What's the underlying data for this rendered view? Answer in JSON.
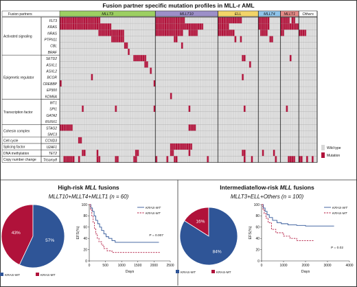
{
  "page_title": "Fusion partner specific mutation profiles in MLL-r AML",
  "heatmap": {
    "header_label": "Fusion partners",
    "partners": [
      {
        "name": "MLLT3",
        "color": "#9ccf62",
        "n": 52
      },
      {
        "name": "MLLT10",
        "color": "#9c8fc8",
        "n": 34
      },
      {
        "name": "ELL",
        "color": "#f2d468",
        "n": 22
      },
      {
        "name": "MLLT4",
        "color": "#8fc4ea",
        "n": 12
      },
      {
        "name": "MLLT1",
        "color": "#e58a86",
        "n": 10
      },
      {
        "name": "Others",
        "color": "#ffffff",
        "n": 10
      }
    ],
    "groups": [
      {
        "name": "Activated signaling",
        "genes": [
          "FLT3",
          "KRAS",
          "NRAS",
          "PTPN11",
          "CBL",
          "BRAF"
        ]
      },
      {
        "name": "Epigenetic regulator",
        "genes": [
          "SETD2",
          "ASXL1",
          "ASXL2",
          "BCOR",
          "CREBBP",
          "EP300",
          "KDM6A"
        ]
      },
      {
        "name": "Transcription factor",
        "genes": [
          "WT1",
          "SPI1",
          "GATA2",
          "RUNX1"
        ]
      },
      {
        "name": "Cohesin complex",
        "genes": [
          "STAG2",
          "SMC3"
        ]
      },
      {
        "name": "Cell cycle",
        "genes": [
          "CCND3"
        ]
      },
      {
        "name": "Splicing factor",
        "genes": [
          "U2AF1"
        ]
      },
      {
        "name": "DNA methylation",
        "genes": [
          "TET2"
        ]
      },
      {
        "name": "Copy number change",
        "genes": [
          "Trisomy8"
        ]
      }
    ],
    "legend": [
      {
        "label": "Wild type",
        "color": "#d8d8d8"
      },
      {
        "label": "Mutation",
        "color": "#b0123a"
      }
    ],
    "colors": {
      "wildtype": "#d8d8d8",
      "mutation": "#b0123a",
      "grid": "#ffffff"
    }
  },
  "panels": [
    {
      "title_prefix": "High-risk ",
      "title_italic": "MLL",
      "title_suffix": " fusions",
      "subtitle": "MLLT10+MLLT4+MLLT1 (n = 60)"
    },
    {
      "title_prefix": "Intermediate/low-risk ",
      "title_italic": "MLL",
      "title_suffix": " fusions",
      "subtitle": "MLLT3+ELL+Others (n = 100)"
    }
  ],
  "chart_data": [
    {
      "type": "heatmap",
      "rows": [
        "FLT3",
        "KRAS",
        "NRAS",
        "PTPN11",
        "CBL",
        "BRAF",
        "SETD2",
        "ASXL1",
        "ASXL2",
        "BCOR",
        "CREBBP",
        "EP300",
        "KDM6A",
        "WT1",
        "SPI1",
        "GATA2",
        "RUNX1",
        "STAG2",
        "SMC3",
        "CCND3",
        "U2AF1",
        "TET2",
        "Trisomy8"
      ],
      "column_groups": [
        {
          "name": "MLLT3",
          "n": 52
        },
        {
          "name": "MLLT10",
          "n": 34
        },
        {
          "name": "ELL",
          "n": 22
        },
        {
          "name": "MLLT4",
          "n": 12
        },
        {
          "name": "MLLT1",
          "n": 10
        },
        {
          "name": "Others",
          "n": 10
        }
      ],
      "mutated_columns": {
        "FLT3": [
          0,
          1,
          2,
          3,
          4,
          5,
          6,
          7,
          8,
          9,
          10,
          11,
          12,
          13,
          14,
          15,
          16,
          17,
          18,
          19,
          20,
          21,
          52,
          53,
          54,
          55,
          56,
          57,
          58,
          59,
          60,
          61,
          62,
          63,
          64,
          65,
          66,
          67,
          86,
          87,
          88,
          89,
          90,
          91,
          92,
          93,
          94,
          95,
          96,
          97,
          98,
          108,
          109,
          110,
          111,
          112,
          113,
          120,
          121,
          122,
          123,
          124,
          126,
          127
        ],
        "KRAS": [
          0,
          1,
          2,
          3,
          4,
          5,
          6,
          7,
          8,
          9,
          10,
          11,
          12,
          13,
          14,
          15,
          16,
          17,
          18,
          19,
          20,
          21,
          22,
          23,
          24,
          25,
          26,
          27,
          52,
          53,
          54,
          55,
          56,
          57,
          58,
          59,
          60,
          61,
          62,
          63,
          64,
          65,
          66,
          67,
          68,
          69,
          70,
          71,
          72,
          73,
          74,
          75,
          76,
          77,
          86,
          87,
          88,
          89,
          90,
          91,
          108,
          109,
          110,
          111,
          112,
          113,
          120,
          121,
          122,
          123,
          124,
          125,
          126,
          127,
          128,
          129
        ],
        "NRAS": [
          21,
          22,
          23,
          24,
          25,
          26,
          27,
          28,
          29,
          30,
          31,
          32,
          33,
          34,
          52,
          53,
          54,
          55,
          56,
          57,
          58,
          59,
          60,
          61,
          62,
          63,
          64,
          65,
          66,
          70,
          71,
          72,
          73,
          74,
          86,
          87,
          88,
          89,
          90,
          91,
          92,
          93,
          94,
          109,
          110,
          111,
          112,
          120,
          121,
          130,
          131,
          132,
          133
        ],
        "PTPN11": [
          28,
          29,
          30,
          31,
          32,
          33,
          34,
          62,
          63,
          95,
          98,
          114,
          115
        ],
        "CBL": [
          35,
          36,
          66
        ],
        "BRAF": [
          37
        ],
        "SETD2": [
          40,
          41,
          42,
          43,
          44,
          45,
          46,
          99,
          100,
          125
        ],
        "ASXL1": [
          46,
          47,
          103
        ],
        "ASXL2": [
          49
        ],
        "BCOR": [
          17,
          99
        ],
        "CREBBP": [
          0,
          51
        ],
        "EP300": [],
        "KDM6A": [
          60
        ],
        "WT1": [],
        "SPI1": [
          12,
          30,
          51,
          70,
          100,
          123
        ],
        "GATA2": [],
        "RUNX1": [],
        "STAG2": [
          0,
          1,
          2,
          3,
          4,
          5,
          6,
          70,
          71,
          72,
          73
        ],
        "SMC3": [],
        "CCND3": [
          10,
          11
        ],
        "U2AF1": [
          60,
          61,
          62,
          63,
          64,
          65,
          66,
          67,
          68,
          69,
          70,
          71
        ],
        "TET2": [
          12,
          13,
          20,
          41,
          42,
          60,
          61,
          70,
          99,
          100,
          110,
          116
        ],
        "Trisomy8": [
          2,
          3,
          4,
          5,
          6,
          7,
          10,
          20,
          21,
          30,
          31,
          40,
          41,
          52,
          58,
          62,
          63,
          80,
          100,
          104,
          117,
          124,
          125,
          126,
          127,
          130,
          131,
          134,
          137
        ]
      }
    },
    {
      "type": "pie",
      "labels": [
        "KRAS-WT",
        "KRAS-MT"
      ],
      "values": [
        57,
        43
      ],
      "value_labels": [
        "57%",
        "43%"
      ],
      "colors": [
        "#2f5597",
        "#b0123a"
      ]
    },
    {
      "type": "line",
      "xlabel": "Days",
      "ylabel": "EFS(%)",
      "xlim": [
        0,
        2500
      ],
      "ylim": [
        0,
        100
      ],
      "xticks": [
        0,
        500,
        1000,
        1500,
        2000,
        2500
      ],
      "yticks": [
        0,
        20,
        40,
        60,
        80,
        100
      ],
      "annotation": "P = 0.007",
      "series": [
        {
          "name": "KRAS-WT",
          "color": "#2f5597",
          "dash": false,
          "x": [
            0,
            50,
            100,
            150,
            200,
            260,
            320,
            380,
            450,
            520,
            600,
            700,
            800,
            900,
            1050,
            1300,
            1700,
            2150
          ],
          "y": [
            100,
            94,
            88,
            80,
            72,
            66,
            60,
            54,
            48,
            43,
            40,
            36,
            33,
            33,
            33,
            33,
            33,
            33
          ]
        },
        {
          "name": "KRAS-MT",
          "color": "#b0123a",
          "dash": true,
          "x": [
            0,
            40,
            80,
            120,
            160,
            200,
            250,
            300,
            380,
            450,
            550,
            700,
            900,
            1100,
            1400,
            1800,
            2200
          ],
          "y": [
            100,
            92,
            80,
            68,
            58,
            48,
            40,
            34,
            28,
            22,
            18,
            15,
            15,
            15,
            15,
            15,
            15
          ]
        }
      ]
    },
    {
      "type": "pie",
      "labels": [
        "KRAS-WT",
        "KRAS-MT"
      ],
      "values": [
        84,
        16
      ],
      "value_labels": [
        "84%",
        "16%"
      ],
      "colors": [
        "#2f5597",
        "#b0123a"
      ]
    },
    {
      "type": "line",
      "xlabel": "Days",
      "ylabel": "EFS(%)",
      "xlim": [
        0,
        4000
      ],
      "ylim": [
        0,
        100
      ],
      "xticks": [
        0,
        1000,
        2000,
        3000,
        4000
      ],
      "yticks": [
        0,
        20,
        40,
        60,
        80,
        100
      ],
      "annotation": "P = 0.02",
      "series": [
        {
          "name": "KRAS-WT",
          "color": "#2f5597",
          "dash": false,
          "x": [
            0,
            80,
            160,
            250,
            350,
            500,
            700,
            900,
            1200,
            1600,
            2000,
            2600,
            3000,
            3300
          ],
          "y": [
            100,
            94,
            88,
            82,
            77,
            72,
            68,
            66,
            64,
            63,
            62,
            62,
            62,
            62
          ]
        },
        {
          "name": "KRAS-MT",
          "color": "#b0123a",
          "dash": true,
          "x": [
            0,
            60,
            120,
            200,
            300,
            450,
            650,
            800,
            1000,
            1300,
            1600,
            2000,
            2400
          ],
          "y": [
            100,
            92,
            84,
            76,
            68,
            56,
            50,
            50,
            44,
            40,
            36,
            36,
            36
          ]
        }
      ]
    }
  ]
}
